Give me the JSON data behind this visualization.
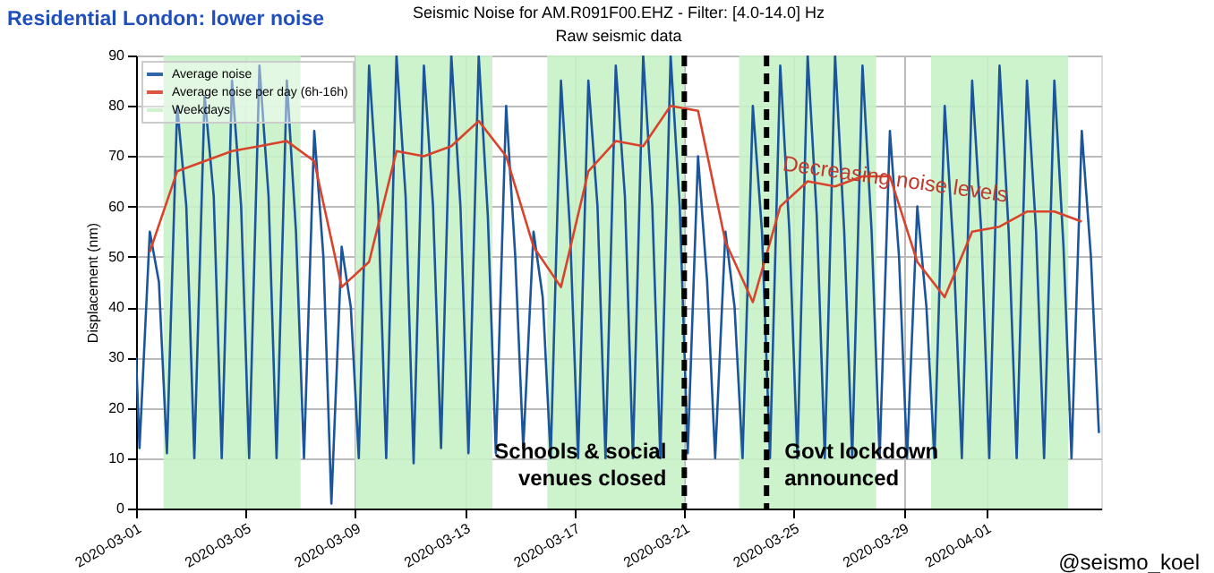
{
  "chart_data": {
    "type": "line",
    "title": "Seismic Noise for AM.R091F00.EHZ - Filter: [4.0-14.0] Hz",
    "subtitle": "Raw seismic data",
    "ylabel": "Displacement (nm)",
    "xlim": [
      "2020-03-01",
      "2020-04-05T05:00"
    ],
    "xticks": [
      "2020-03-01",
      "2020-03-05",
      "2020-03-09",
      "2020-03-13",
      "2020-03-17",
      "2020-03-21",
      "2020-03-25",
      "2020-03-29",
      "2020-04-01"
    ],
    "ylim": [
      0,
      90
    ],
    "yticks": [
      0,
      10,
      20,
      30,
      40,
      50,
      60,
      70,
      80,
      90
    ],
    "grid": true,
    "legend": "top left",
    "series": [
      {
        "name": "Average noise",
        "color": "#1b559c",
        "x": [
          "2020-03-01T00:00",
          "2020-03-01T03:00",
          "2020-03-01T12:00",
          "2020-03-01T20:00",
          "2020-03-02T03:00",
          "2020-03-02T12:00",
          "2020-03-02T20:00",
          "2020-03-03T03:00",
          "2020-03-03T12:00",
          "2020-03-03T20:00",
          "2020-03-04T03:00",
          "2020-03-04T12:00",
          "2020-03-04T20:00",
          "2020-03-05T03:00",
          "2020-03-05T12:00",
          "2020-03-05T20:00",
          "2020-03-06T03:00",
          "2020-03-06T12:00",
          "2020-03-06T20:00",
          "2020-03-07T03:00",
          "2020-03-07T12:00",
          "2020-03-07T20:00",
          "2020-03-08T03:00",
          "2020-03-08T12:00",
          "2020-03-08T20:00",
          "2020-03-09T03:00",
          "2020-03-09T12:00",
          "2020-03-09T20:00",
          "2020-03-10T03:00",
          "2020-03-10T12:00",
          "2020-03-10T20:00",
          "2020-03-11T03:00",
          "2020-03-11T12:00",
          "2020-03-11T20:00",
          "2020-03-12T03:00",
          "2020-03-12T12:00",
          "2020-03-12T20:00",
          "2020-03-13T03:00",
          "2020-03-13T12:00",
          "2020-03-13T20:00",
          "2020-03-14T03:00",
          "2020-03-14T12:00",
          "2020-03-14T20:00",
          "2020-03-15T03:00",
          "2020-03-15T12:00",
          "2020-03-15T20:00",
          "2020-03-16T03:00",
          "2020-03-16T12:00",
          "2020-03-16T20:00",
          "2020-03-17T03:00",
          "2020-03-17T12:00",
          "2020-03-17T20:00",
          "2020-03-18T03:00",
          "2020-03-18T12:00",
          "2020-03-18T20:00",
          "2020-03-19T03:00",
          "2020-03-19T12:00",
          "2020-03-19T20:00",
          "2020-03-20T03:00",
          "2020-03-20T12:00",
          "2020-03-20T20:00",
          "2020-03-21T03:00",
          "2020-03-21T12:00",
          "2020-03-21T20:00",
          "2020-03-22T03:00",
          "2020-03-22T12:00",
          "2020-03-22T20:00",
          "2020-03-23T03:00",
          "2020-03-23T12:00",
          "2020-03-23T20:00",
          "2020-03-24T03:00",
          "2020-03-24T12:00",
          "2020-03-24T20:00",
          "2020-03-25T03:00",
          "2020-03-25T12:00",
          "2020-03-25T20:00",
          "2020-03-26T03:00",
          "2020-03-26T12:00",
          "2020-03-26T20:00",
          "2020-03-27T03:00",
          "2020-03-27T12:00",
          "2020-03-27T20:00",
          "2020-03-28T03:00",
          "2020-03-28T12:00",
          "2020-03-28T20:00",
          "2020-03-29T03:00",
          "2020-03-29T12:00",
          "2020-03-29T20:00",
          "2020-03-30T03:00",
          "2020-03-30T12:00",
          "2020-03-30T20:00",
          "2020-03-31T03:00",
          "2020-03-31T12:00",
          "2020-03-31T20:00",
          "2020-04-01T03:00",
          "2020-04-01T12:00",
          "2020-04-01T20:00",
          "2020-04-02T03:00",
          "2020-04-02T12:00",
          "2020-04-02T20:00",
          "2020-04-03T03:00",
          "2020-04-03T12:00",
          "2020-04-03T20:00",
          "2020-04-04T03:00",
          "2020-04-04T12:00",
          "2020-04-04T20:00",
          "2020-04-05T03:00"
        ],
        "values": [
          30,
          12,
          55,
          45,
          11,
          80,
          60,
          10,
          82,
          62,
          10,
          85,
          60,
          10,
          88,
          62,
          10,
          85,
          55,
          10,
          75,
          50,
          1,
          52,
          40,
          10,
          88,
          60,
          10,
          90,
          62,
          9,
          88,
          60,
          12,
          90,
          60,
          11,
          90,
          58,
          11,
          80,
          50,
          12,
          55,
          42,
          10,
          85,
          55,
          10,
          85,
          60,
          10,
          88,
          62,
          10,
          90,
          60,
          10,
          90,
          60,
          11,
          70,
          45,
          10,
          55,
          40,
          10,
          80,
          55,
          10,
          88,
          55,
          10,
          90,
          58,
          10,
          90,
          55,
          10,
          88,
          55,
          10,
          75,
          50,
          10,
          60,
          40,
          10,
          80,
          50,
          10,
          85,
          55,
          10,
          88,
          55,
          10,
          85,
          55,
          10,
          85,
          52,
          10,
          75,
          50,
          15
        ]
      },
      {
        "name": "Average noise per day (6h-16h)",
        "color": "#d9432b",
        "x": [
          "2020-03-01T12:00",
          "2020-03-02T12:00",
          "2020-03-03T12:00",
          "2020-03-04T12:00",
          "2020-03-05T12:00",
          "2020-03-06T12:00",
          "2020-03-07T12:00",
          "2020-03-08T12:00",
          "2020-03-09T12:00",
          "2020-03-10T12:00",
          "2020-03-11T12:00",
          "2020-03-12T12:00",
          "2020-03-13T12:00",
          "2020-03-14T12:00",
          "2020-03-15T12:00",
          "2020-03-16T12:00",
          "2020-03-17T12:00",
          "2020-03-18T12:00",
          "2020-03-19T12:00",
          "2020-03-20T12:00",
          "2020-03-21T12:00",
          "2020-03-22T12:00",
          "2020-03-23T12:00",
          "2020-03-24T12:00",
          "2020-03-25T12:00",
          "2020-03-26T12:00",
          "2020-03-27T12:00",
          "2020-03-28T12:00",
          "2020-03-29T12:00",
          "2020-03-30T12:00",
          "2020-03-31T12:00",
          "2020-04-01T12:00",
          "2020-04-02T12:00",
          "2020-04-03T12:00",
          "2020-04-04T12:00"
        ],
        "values": [
          51,
          67,
          69,
          71,
          72,
          73,
          69,
          44,
          49,
          71,
          70,
          72,
          77,
          70,
          52,
          44,
          67,
          73,
          72,
          80,
          79,
          53,
          41,
          60,
          65,
          64,
          66,
          66,
          49,
          42,
          55,
          56,
          59,
          59,
          57
        ]
      }
    ],
    "bands": [
      {
        "axis": "x",
        "from": "2020-03-02",
        "to": "2020-03-07",
        "label": "Weekdays",
        "color": "#c8f2c8"
      },
      {
        "axis": "x",
        "from": "2020-03-09",
        "to": "2020-03-14",
        "color": "#c8f2c8"
      },
      {
        "axis": "x",
        "from": "2020-03-16",
        "to": "2020-03-21",
        "color": "#c8f2c8"
      },
      {
        "axis": "x",
        "from": "2020-03-23",
        "to": "2020-03-28",
        "color": "#c8f2c8"
      },
      {
        "axis": "x",
        "from": "2020-03-30",
        "to": "2020-04-04",
        "color": "#c8f2c8"
      }
    ],
    "ref_lines": [
      {
        "axis": "x",
        "value": "2020-03-21",
        "label": "Schools & social venues closed",
        "color": "#000000",
        "line_style": "dashed"
      },
      {
        "axis": "x",
        "value": "2020-03-24",
        "label": "Govt lockdown announced",
        "color": "#000000",
        "line_style": "dashed"
      }
    ],
    "annotations": [
      "Residential London: lower noise",
      "@seismo_koel",
      "Decreasing noise levels"
    ]
  }
}
